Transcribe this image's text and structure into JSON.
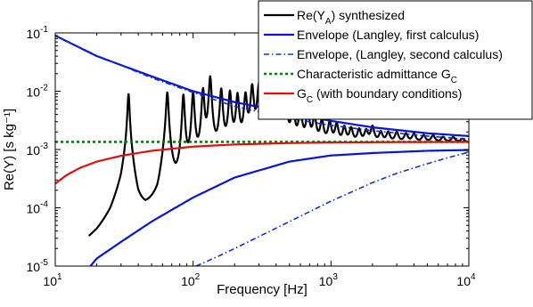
{
  "chart_data": {
    "type": "line",
    "xlabel": "Frequency [Hz]",
    "ylabel": "Re(Y) [s kg⁻¹]",
    "xscale": "log",
    "yscale": "log",
    "xlim": [
      10,
      10000
    ],
    "ylim": [
      1e-05,
      0.1
    ],
    "grid": false,
    "legend_position": "top-right",
    "x_ticks": [
      {
        "value": 10,
        "base": "10",
        "exp": "1"
      },
      {
        "value": 100,
        "base": "10",
        "exp": "2"
      },
      {
        "value": 1000,
        "base": "10",
        "exp": "3"
      },
      {
        "value": 10000,
        "base": "10",
        "exp": "4"
      }
    ],
    "y_ticks": [
      {
        "value": 0.1,
        "base": "10",
        "exp": "-1"
      },
      {
        "value": 0.01,
        "base": "10",
        "exp": "-2"
      },
      {
        "value": 0.001,
        "base": "10",
        "exp": "-3"
      },
      {
        "value": 0.0001,
        "base": "10",
        "exp": "-4"
      },
      {
        "value": 1e-05,
        "base": "10",
        "exp": "-5"
      }
    ],
    "series": [
      {
        "name": "Re(Y_A) synthesized",
        "legend_parts": [
          {
            "t": "Re(Y"
          },
          {
            "t": "A",
            "sub": true
          },
          {
            "t": ") synthesized"
          }
        ],
        "color": "#000000",
        "style": "solid",
        "width": 2.2,
        "baseline_points": [
          [
            17.5,
            1e-05
          ],
          [
            20,
            1.6e-05
          ],
          [
            25,
            5e-05
          ],
          [
            30,
            0.00022
          ],
          [
            34,
            0.0015
          ],
          [
            40,
            7e-05
          ],
          [
            45,
            3.5e-05
          ],
          [
            55,
            5.5e-05
          ],
          [
            64,
            0.0015
          ],
          [
            75,
            9e-05
          ],
          [
            85,
            7e-05
          ],
          [
            100,
            0.00011
          ],
          [
            120,
            0.00022
          ],
          [
            150,
            0.00038
          ],
          [
            200,
            0.00055
          ],
          [
            300,
            0.00075
          ],
          [
            500,
            0.00095
          ],
          [
            1000,
            0.0011
          ],
          [
            2000,
            0.0012
          ],
          [
            4000,
            0.00125
          ],
          [
            10000,
            0.0013
          ]
        ],
        "resonances": [
          {
            "f": 34,
            "peak": 0.009
          },
          {
            "f": 65,
            "peak": 0.0095
          },
          {
            "f": 85,
            "peak": 0.0085
          },
          {
            "f": 100,
            "peak": 0.0095
          },
          {
            "f": 118,
            "peak": 0.0105
          },
          {
            "f": 133,
            "peak": 0.0175
          },
          {
            "f": 160,
            "peak": 0.0105
          },
          {
            "f": 185,
            "peak": 0.0095
          },
          {
            "f": 210,
            "peak": 0.0085
          },
          {
            "f": 240,
            "peak": 0.0085
          },
          {
            "f": 268,
            "peak": 0.012
          },
          {
            "f": 300,
            "peak": 0.0125
          },
          {
            "f": 335,
            "peak": 0.009
          },
          {
            "f": 375,
            "peak": 0.0078
          },
          {
            "f": 420,
            "peak": 0.0072
          },
          {
            "f": 470,
            "peak": 0.0062
          },
          {
            "f": 530,
            "peak": 0.0052
          },
          {
            "f": 600,
            "peak": 0.0045
          },
          {
            "f": 680,
            "peak": 0.0042
          },
          {
            "f": 760,
            "peak": 0.0035
          },
          {
            "f": 860,
            "peak": 0.003
          },
          {
            "f": 980,
            "peak": 0.0028
          },
          {
            "f": 1100,
            "peak": 0.0026
          },
          {
            "f": 1250,
            "peak": 0.0023
          },
          {
            "f": 1400,
            "peak": 0.0022
          },
          {
            "f": 1600,
            "peak": 0.0021
          },
          {
            "f": 1800,
            "peak": 0.002
          },
          {
            "f": 2000,
            "peak": 0.0024
          },
          {
            "f": 2300,
            "peak": 0.0019
          },
          {
            "f": 2600,
            "peak": 0.0019
          },
          {
            "f": 3000,
            "peak": 0.0019
          },
          {
            "f": 3500,
            "peak": 0.0018
          },
          {
            "f": 4000,
            "peak": 0.0018
          },
          {
            "f": 4700,
            "peak": 0.0017
          },
          {
            "f": 5500,
            "peak": 0.0017
          },
          {
            "f": 6500,
            "peak": 0.0016
          },
          {
            "f": 7700,
            "peak": 0.0016
          },
          {
            "f": 9000,
            "peak": 0.0015
          }
        ]
      },
      {
        "name": "Envelope (Langley, first calculus)",
        "legend_parts": [
          {
            "t": "Envelope (Langley, first calculus)"
          }
        ],
        "color": "#0a14d8",
        "style": "solid",
        "width": 2.2,
        "curves": [
          [
            [
              10,
              0.09
            ],
            [
              20,
              0.04
            ],
            [
              50,
              0.018
            ],
            [
              100,
              0.01
            ],
            [
              200,
              0.0065
            ],
            [
              500,
              0.0042
            ],
            [
              1000,
              0.0031
            ],
            [
              2000,
              0.0024
            ],
            [
              5000,
              0.0019
            ],
            [
              10000,
              0.0017
            ]
          ],
          [
            [
              18,
              1e-05
            ],
            [
              20,
              1.35e-05
            ],
            [
              30,
              2.6e-05
            ],
            [
              50,
              5.8e-05
            ],
            [
              100,
              0.00015
            ],
            [
              200,
              0.00033
            ],
            [
              500,
              0.00062
            ],
            [
              1000,
              0.00079
            ],
            [
              2000,
              0.00087
            ],
            [
              5000,
              0.00095
            ],
            [
              10000,
              0.00098
            ]
          ]
        ]
      },
      {
        "name": "Envelope, (Langley, second calculus)",
        "legend_parts": [
          {
            "t": "Envelope, (Langley, second calculus)"
          }
        ],
        "color": "#1030d0",
        "style": "dashdot",
        "width": 1.6,
        "curves": [
          [
            [
              10,
              0.09
            ],
            [
              20,
              0.041
            ],
            [
              50,
              0.017
            ],
            [
              100,
              0.0095
            ],
            [
              200,
              0.0055
            ],
            [
              500,
              0.0034
            ],
            [
              1000,
              0.0026
            ],
            [
              2000,
              0.0021
            ],
            [
              5000,
              0.0017
            ],
            [
              10000,
              0.0015
            ]
          ],
          [
            [
              105,
              1e-05
            ],
            [
              150,
              1.45e-05
            ],
            [
              200,
              2e-05
            ],
            [
              300,
              3.2e-05
            ],
            [
              500,
              5.8e-05
            ],
            [
              1000,
              0.00013
            ],
            [
              2000,
              0.00027
            ],
            [
              3000,
              0.00039
            ],
            [
              5000,
              0.00057
            ],
            [
              7000,
              0.00072
            ],
            [
              10000,
              0.0009
            ]
          ]
        ]
      },
      {
        "name": "Characteristic admittance G_C",
        "legend_parts": [
          {
            "t": "Characteristic admittance G"
          },
          {
            "t": "C",
            "sub": true
          }
        ],
        "color": "#0a7a0a",
        "style": "dotted",
        "width": 2.6,
        "curves": [
          [
            [
              10,
              0.00135
            ],
            [
              10000,
              0.00135
            ]
          ]
        ]
      },
      {
        "name": "G_C (with boundary conditions)",
        "legend_parts": [
          {
            "t": "G"
          },
          {
            "t": "C",
            "sub": true
          },
          {
            "t": " (with boundary conditions)"
          }
        ],
        "color": "#e01010",
        "style": "solid",
        "width": 2.2,
        "curves": [
          [
            [
              10,
              0.00026
            ],
            [
              12,
              0.00036
            ],
            [
              15,
              0.00048
            ],
            [
              20,
              0.00062
            ],
            [
              30,
              0.00078
            ],
            [
              50,
              0.00095
            ],
            [
              100,
              0.00112
            ],
            [
              200,
              0.00122
            ],
            [
              500,
              0.00129
            ],
            [
              1000,
              0.00132
            ],
            [
              3000,
              0.00134
            ],
            [
              10000,
              0.00135
            ]
          ]
        ]
      }
    ]
  }
}
